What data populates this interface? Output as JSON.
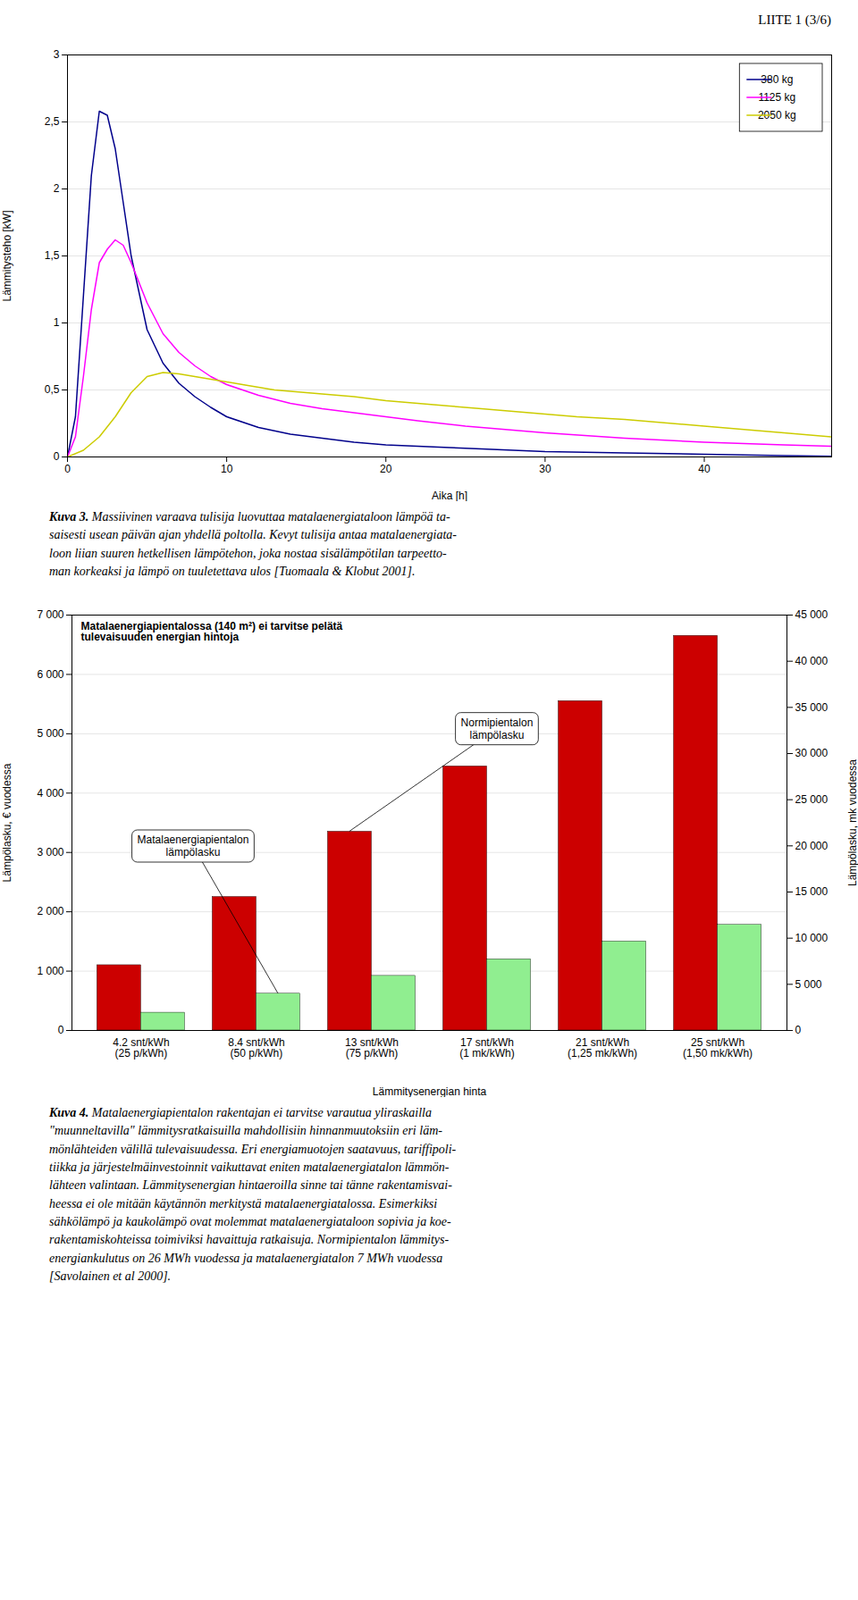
{
  "title": "LIITE 1 (3/6)",
  "chart_data": [
    {
      "type": "line",
      "xlabel": "Aika [h]",
      "ylabel": "Lämmitysteho [kW]",
      "xlim": [
        0,
        48
      ],
      "ylim": [
        0,
        3
      ],
      "xticks": [
        0,
        10,
        20,
        30,
        40
      ],
      "yticks": [
        0,
        {
          "value": 0.5,
          "label": "0,5"
        },
        1,
        {
          "value": 1.5,
          "label": "1,5"
        },
        2,
        {
          "value": 2.5,
          "label": "2,5"
        },
        3
      ],
      "grid": "y",
      "legend": "upper right",
      "series": [
        {
          "name": "380 kg",
          "color": "#00008B",
          "x": [
            0,
            0.5,
            1.0,
            1.5,
            2.0,
            2.5,
            3.0,
            3.5,
            4.0,
            5.0,
            6.0,
            7.0,
            8.0,
            9.0,
            10.0,
            12.0,
            14.0,
            16.0,
            18.0,
            20.0,
            22.0,
            24.0,
            26.0,
            28.0,
            30.0,
            35.0,
            40.0,
            45.0,
            48.0
          ],
          "values": [
            0,
            0.3,
            1.2,
            2.1,
            2.58,
            2.55,
            2.3,
            1.9,
            1.5,
            0.95,
            0.7,
            0.55,
            0.45,
            0.37,
            0.3,
            0.22,
            0.17,
            0.14,
            0.11,
            0.09,
            0.08,
            0.07,
            0.06,
            0.05,
            0.04,
            0.03,
            0.02,
            0.01,
            0.005
          ]
        },
        {
          "name": "1125 kg",
          "color": "#FF00FF",
          "x": [
            0,
            0.5,
            1.0,
            1.5,
            2.0,
            2.5,
            3.0,
            3.5,
            4.0,
            4.5,
            5.0,
            6.0,
            7.0,
            8.0,
            9.0,
            10.0,
            12.0,
            14.0,
            16.0,
            18.0,
            20.0,
            22.0,
            25.0,
            28.0,
            30.0,
            35.0,
            40.0,
            45.0,
            48.0
          ],
          "values": [
            0,
            0.15,
            0.6,
            1.1,
            1.45,
            1.55,
            1.62,
            1.58,
            1.45,
            1.3,
            1.15,
            0.92,
            0.78,
            0.68,
            0.6,
            0.54,
            0.46,
            0.4,
            0.36,
            0.33,
            0.3,
            0.27,
            0.23,
            0.2,
            0.18,
            0.14,
            0.11,
            0.09,
            0.08
          ]
        },
        {
          "name": "2050 kg",
          "color": "#CCCC00",
          "x": [
            0,
            1.0,
            2.0,
            3.0,
            4.0,
            5.0,
            6.0,
            7.0,
            8.0,
            9.0,
            10.0,
            11.0,
            12.0,
            13.0,
            14.0,
            15.0,
            16.0,
            17.0,
            18.0,
            20.0,
            22.0,
            24.0,
            26.0,
            28.0,
            30.0,
            32.0,
            35.0,
            40.0,
            45.0,
            48.0
          ],
          "values": [
            0,
            0.05,
            0.15,
            0.3,
            0.48,
            0.6,
            0.63,
            0.62,
            0.6,
            0.58,
            0.56,
            0.54,
            0.52,
            0.5,
            0.49,
            0.48,
            0.47,
            0.46,
            0.45,
            0.42,
            0.4,
            0.38,
            0.36,
            0.34,
            0.32,
            0.3,
            0.28,
            0.23,
            0.18,
            0.15
          ]
        }
      ],
      "caption": {
        "label": "Kuva 3.",
        "text": "Massiivinen varaava tulisija luovuttaa matalaenergiataloon lämpöä ta-\nsaisesti usean päivän ajan yhdellä poltolla. Kevyt tulisija antaa matalaenergiata-\nloon liian suuren hetkellisen lämpötehon, joka nostaa sisälämpötilan tarpeetto-\nman korkeaksi ja lämpö on tuuletettava ulos [Tuomaala & Klobut 2001]."
      }
    },
    {
      "type": "bar",
      "xlabel": "Lämmitysenergian hinta",
      "ylabel": "Lämpölasku, € vuodessa",
      "y2label": "Lämpölasku, mk vuodessa",
      "categories": [
        "4.2 snt/kWh\n(25 p/kWh)",
        "8.4 snt/kWh\n(50 p/kWh)",
        "13 snt/kWh\n(75 p/kWh)",
        "17 snt/kWh\n(1 mk/kWh)",
        "21 snt/kWh\n(1,25 mk/kWh)",
        "25 snt/kWh\n(1,50 mk/kWh)"
      ],
      "ylim": [
        0,
        7000
      ],
      "yticks": [
        0,
        {
          "value": 1000,
          "label": "1 000"
        },
        {
          "value": 2000,
          "label": "2 000"
        },
        {
          "value": 3000,
          "label": "3 000"
        },
        {
          "value": 4000,
          "label": "4 000"
        },
        {
          "value": 5000,
          "label": "5 000"
        },
        {
          "value": 6000,
          "label": "6 000"
        },
        {
          "value": 7000,
          "label": "7 000"
        }
      ],
      "y2lim": [
        0,
        45000
      ],
      "y2ticks": [
        0,
        {
          "value": 5000,
          "label": "5 000"
        },
        {
          "value": 10000,
          "label": "10 000"
        },
        {
          "value": 15000,
          "label": "15 000"
        },
        {
          "value": 20000,
          "label": "20 000"
        },
        {
          "value": 25000,
          "label": "25 000"
        },
        {
          "value": 30000,
          "label": "30 000"
        },
        {
          "value": 35000,
          "label": "35 000"
        },
        {
          "value": 40000,
          "label": "40 000"
        },
        {
          "value": 45000,
          "label": "45 000"
        }
      ],
      "grid": "y",
      "series": [
        {
          "color": "#CC0000",
          "values": [
            1100,
            2250,
            3350,
            4450,
            5550,
            6650
          ]
        },
        {
          "color": "#90EE90",
          "values": [
            300,
            620,
            920,
            1200,
            1500,
            1780
          ]
        }
      ],
      "annotations": [
        {
          "text": "Matalaenergiapientalossa (140 m²) ei tarvitse pelätä\ntulevaisuuden energian hintoja"
        },
        {
          "text": "Matalaenergiapientalon\nlämpölasku",
          "x": "8.4 snt/kWh\n(50 p/kWh)",
          "y": 620
        },
        {
          "text": "Normipientalon\nlämpölasku",
          "x": "13 snt/kWh\n(75 p/kWh)",
          "y": 3350
        }
      ],
      "caption": {
        "label": "Kuva 4.",
        "text": "Matalaenergiapientalon rakentajan ei tarvitse varautua yliraskailla\n\"muunneltavilla\" lämmitysratkaisuilla mahdollisiin hinnanmuutoksiin eri läm-\nmönlähteiden välillä tulevaisuudessa. Eri energiamuotojen saatavuus, tariffipoli-\ntiikka ja järjestelmäinvestoinnit vaikuttavat eniten matalaenergiatalon lämmön-\nlähteen valintaan. Lämmitysenergian hintaeroilla sinne tai tänne rakentamisvai-\nheessa ei ole mitään käytännön merkitystä matalaenergiatalossa. Esimerkiksi\nsähkölämpö ja kaukolämpö ovat molemmat matalaenergiataloon sopivia ja koe-\nrakentamiskohteissa toimiviksi havaittuja ratkaisuja. Normipientalon lämmitys-\nenergiankulutus on 26 MWh vuodessa ja matalaenergiatalon 7 MWh vuodessa\n[Savolainen et al 2000]."
      }
    }
  ]
}
